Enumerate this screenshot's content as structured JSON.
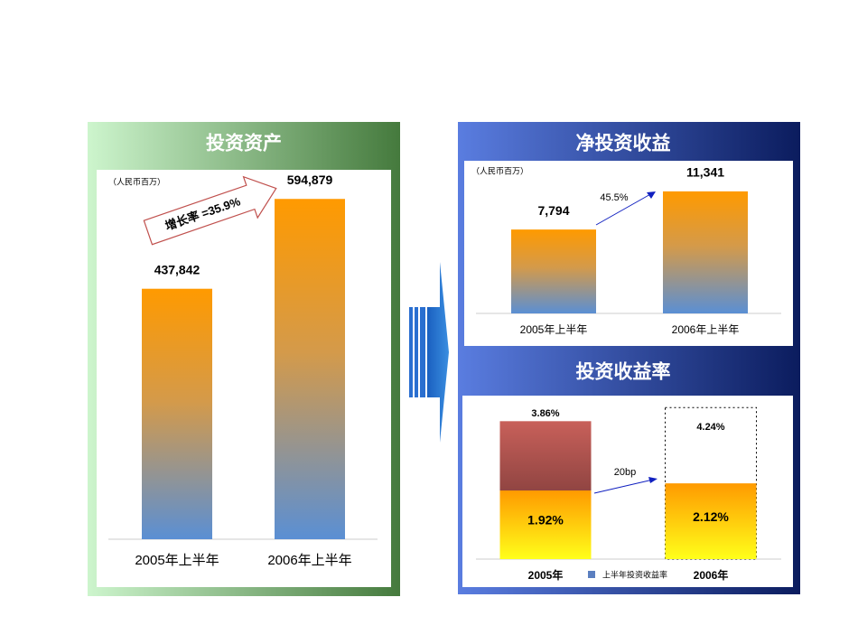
{
  "chart_data": [
    {
      "type": "bar",
      "title": "投资资产",
      "subtitle": "（人民币百万）",
      "categories": [
        "2005年上半年",
        "2006年上半年"
      ],
      "values": [
        437842,
        594879
      ],
      "value_labels": [
        "437,842",
        "594,879"
      ],
      "ylim": [
        0,
        600000
      ],
      "annotation": "增长率 =35.9%"
    },
    {
      "type": "bar",
      "title": "净投资收益",
      "subtitle": "（人民币百万）",
      "categories": [
        "2005年上半年",
        "2006年上半年"
      ],
      "values": [
        7794,
        11341
      ],
      "value_labels": [
        "7,794",
        "11,341"
      ],
      "ylim": [
        0,
        12000
      ],
      "annotation": "45.5%"
    },
    {
      "type": "bar",
      "title": "投资收益率",
      "categories": [
        "2005年",
        "2006年"
      ],
      "series": [
        {
          "name": "上半年投资收益率",
          "color": "#5b7fc0",
          "values": [
            1.92,
            2.12
          ],
          "value_labels": [
            "1.92%",
            "2.12%"
          ]
        }
      ],
      "totals": [
        3.86,
        4.24
      ],
      "total_labels": [
        "3.86%",
        "4.24%"
      ],
      "ylim": [
        0,
        4.5
      ],
      "annotation": "20bp"
    }
  ]
}
